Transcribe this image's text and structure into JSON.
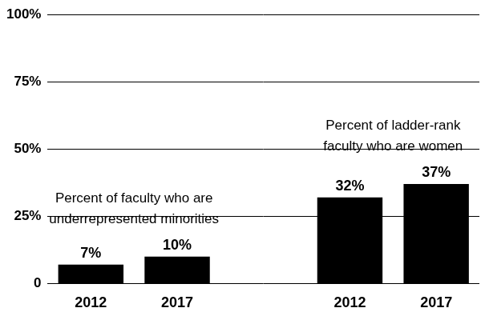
{
  "chart_data": {
    "type": "bar",
    "categories": [
      "2012",
      "2017",
      null,
      "2012",
      "2017"
    ],
    "values": [
      7,
      10,
      null,
      32,
      37
    ],
    "value_labels": [
      "7%",
      "10%",
      null,
      "32%",
      "37%"
    ],
    "color": "#000000",
    "ylim": [
      0,
      100
    ],
    "yticks": [
      0,
      {
        "value": 25,
        "label": "25%"
      },
      {
        "value": 50,
        "label": "50%"
      },
      {
        "value": 75,
        "label": "75%"
      },
      {
        "value": 100,
        "label": "100%"
      }
    ],
    "grid": true,
    "data_labels": true,
    "annotations": [
      [
        "Percent of faculty who are",
        "underrepresented minorities"
      ],
      [
        "Percent of ladder-rank",
        "faculty who are women"
      ]
    ]
  }
}
